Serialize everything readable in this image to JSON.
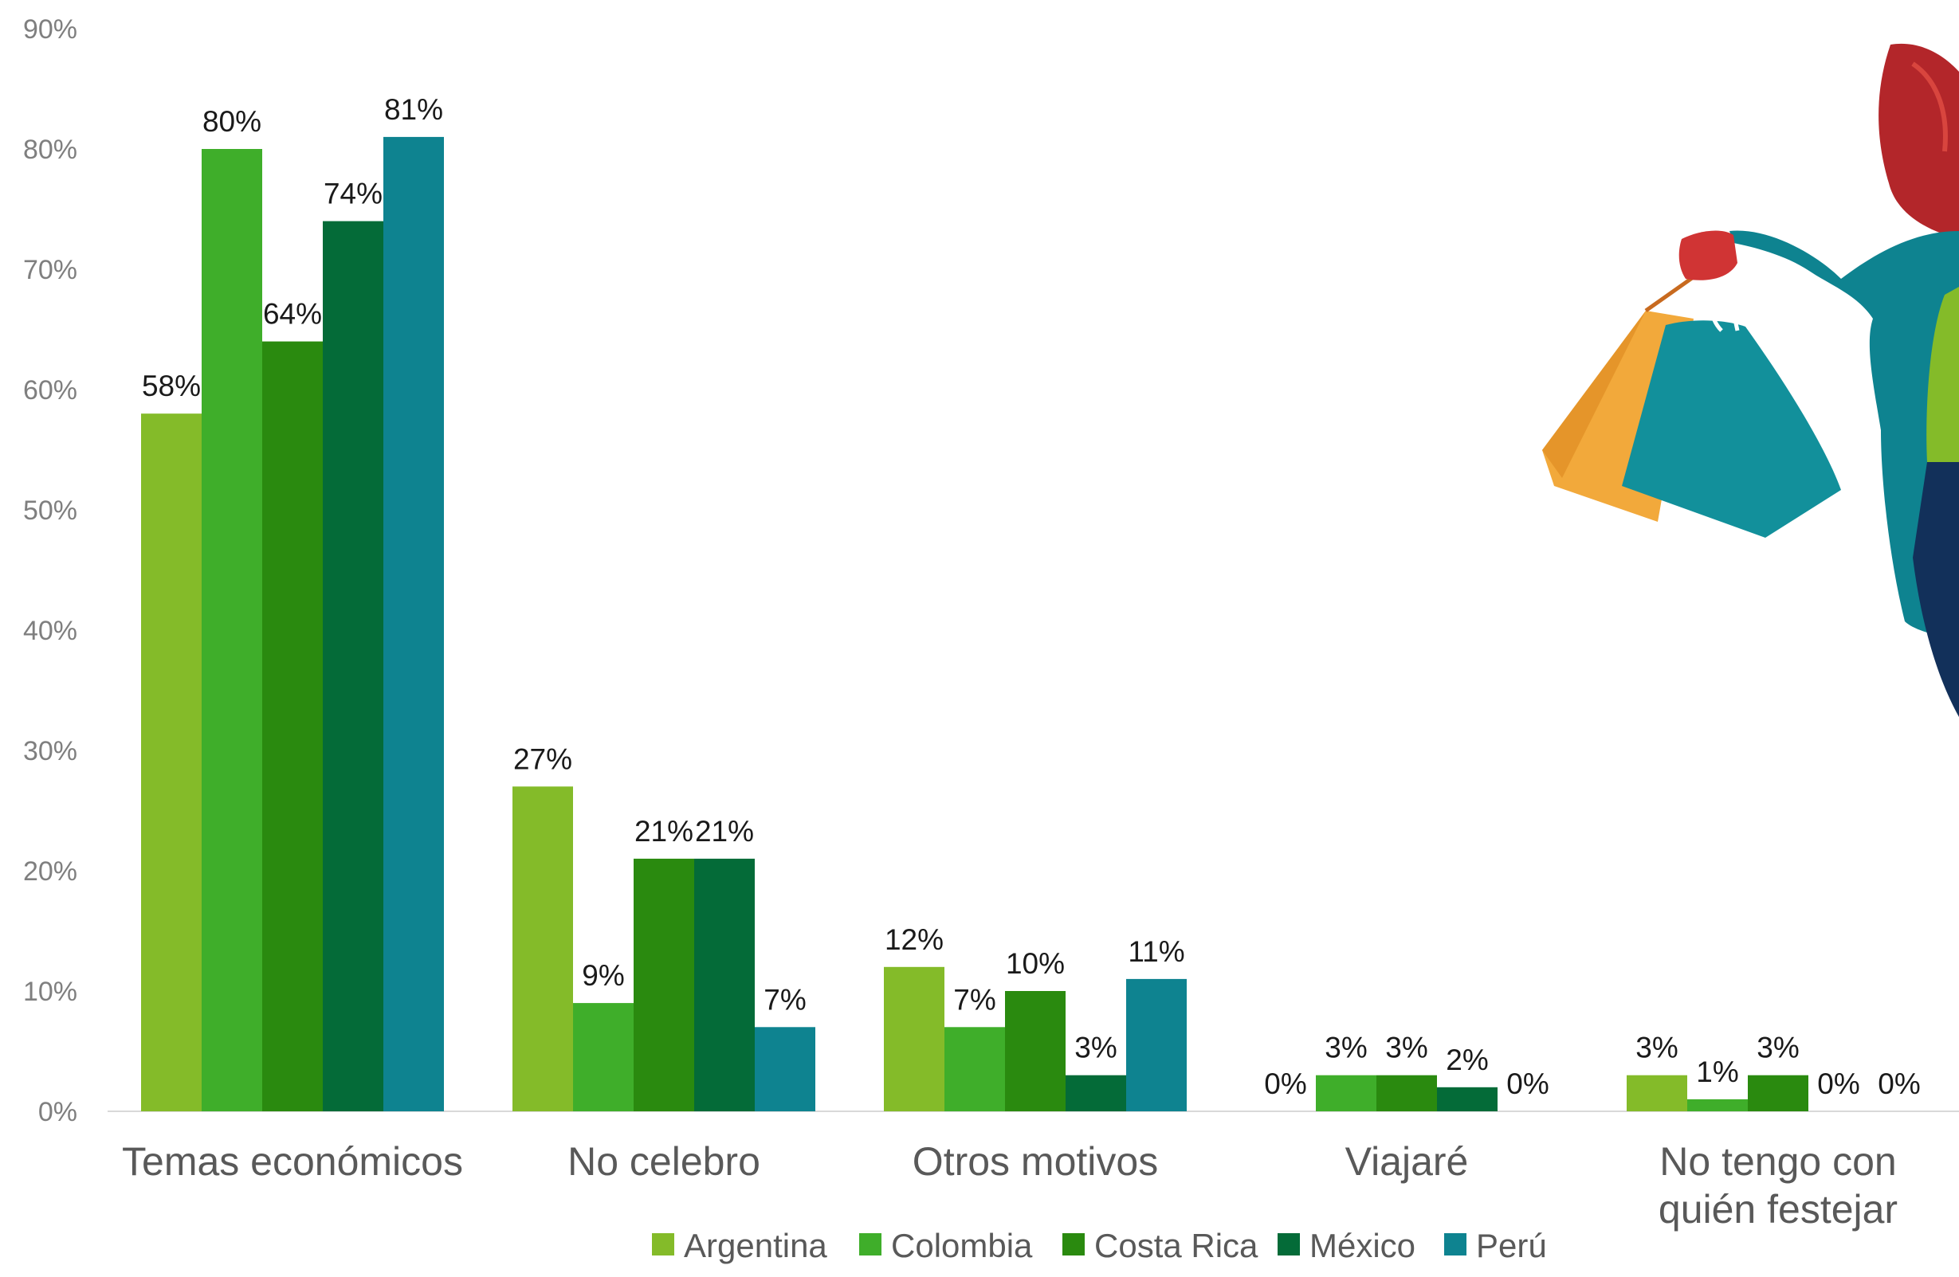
{
  "chart_data": {
    "type": "bar",
    "categories": [
      [
        "Temas económicos"
      ],
      [
        "No celebro"
      ],
      [
        "Otros motivos"
      ],
      [
        "Viajaré"
      ],
      [
        "No tengo con",
        "quién festejar"
      ]
    ],
    "series": [
      {
        "name": "Argentina",
        "color": "#84bb29",
        "values": [
          58,
          27,
          12,
          0,
          3
        ]
      },
      {
        "name": "Colombia",
        "color": "#3fae2a",
        "values": [
          80,
          9,
          7,
          3,
          1
        ]
      },
      {
        "name": "Costa Rica",
        "color": "#2a8a0f",
        "values": [
          64,
          21,
          10,
          3,
          3
        ]
      },
      {
        "name": "México",
        "color": "#046b38",
        "values": [
          74,
          21,
          3,
          2,
          0
        ]
      },
      {
        "name": "Perú",
        "color": "#0e8390",
        "values": [
          81,
          7,
          11,
          0,
          0
        ]
      }
    ],
    "yticks": [
      "0%",
      "10%",
      "20%",
      "30%",
      "40%",
      "50%",
      "60%",
      "70%",
      "80%",
      "90%"
    ],
    "value_suffix": "%",
    "ylim": [
      0,
      90
    ],
    "grid": false,
    "legend_position": "bottom"
  },
  "illustration": {
    "description_icon": "woman-with-shopping-bags-illustration",
    "colors": {
      "hair": "#b3262a",
      "jacket": "#0e8390",
      "bag_orange": "#f2a93b",
      "bag_teal": "#12909b",
      "glove": "#d03434",
      "top": "#84bb29",
      "pants": "#12305a"
    }
  }
}
